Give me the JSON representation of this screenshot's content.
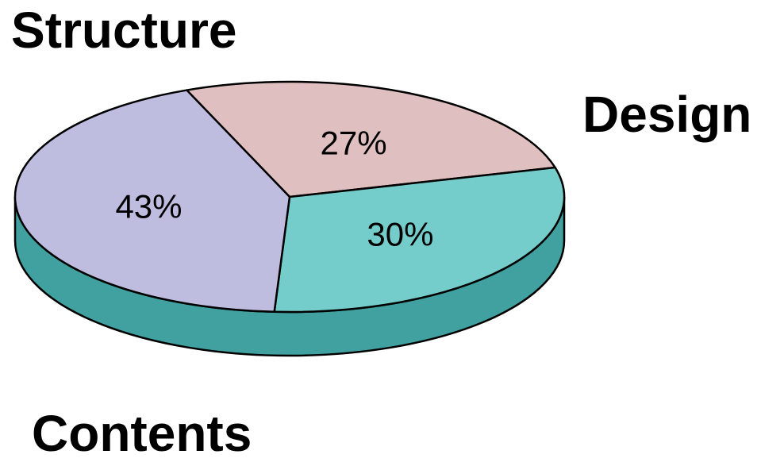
{
  "chart_data": {
    "type": "pie",
    "style": "3d",
    "title": "",
    "slices": [
      {
        "label": "Structure",
        "value": 27,
        "value_label": "27%",
        "color": "#dfbfbf"
      },
      {
        "label": "Design",
        "value": 30,
        "value_label": "30%",
        "color": "#74cdcb"
      },
      {
        "label": "Contents",
        "value": 43,
        "value_label": "43%",
        "color": "#bfbddf"
      }
    ],
    "side_color": "#40a1a0",
    "outline_color": "#000000"
  }
}
